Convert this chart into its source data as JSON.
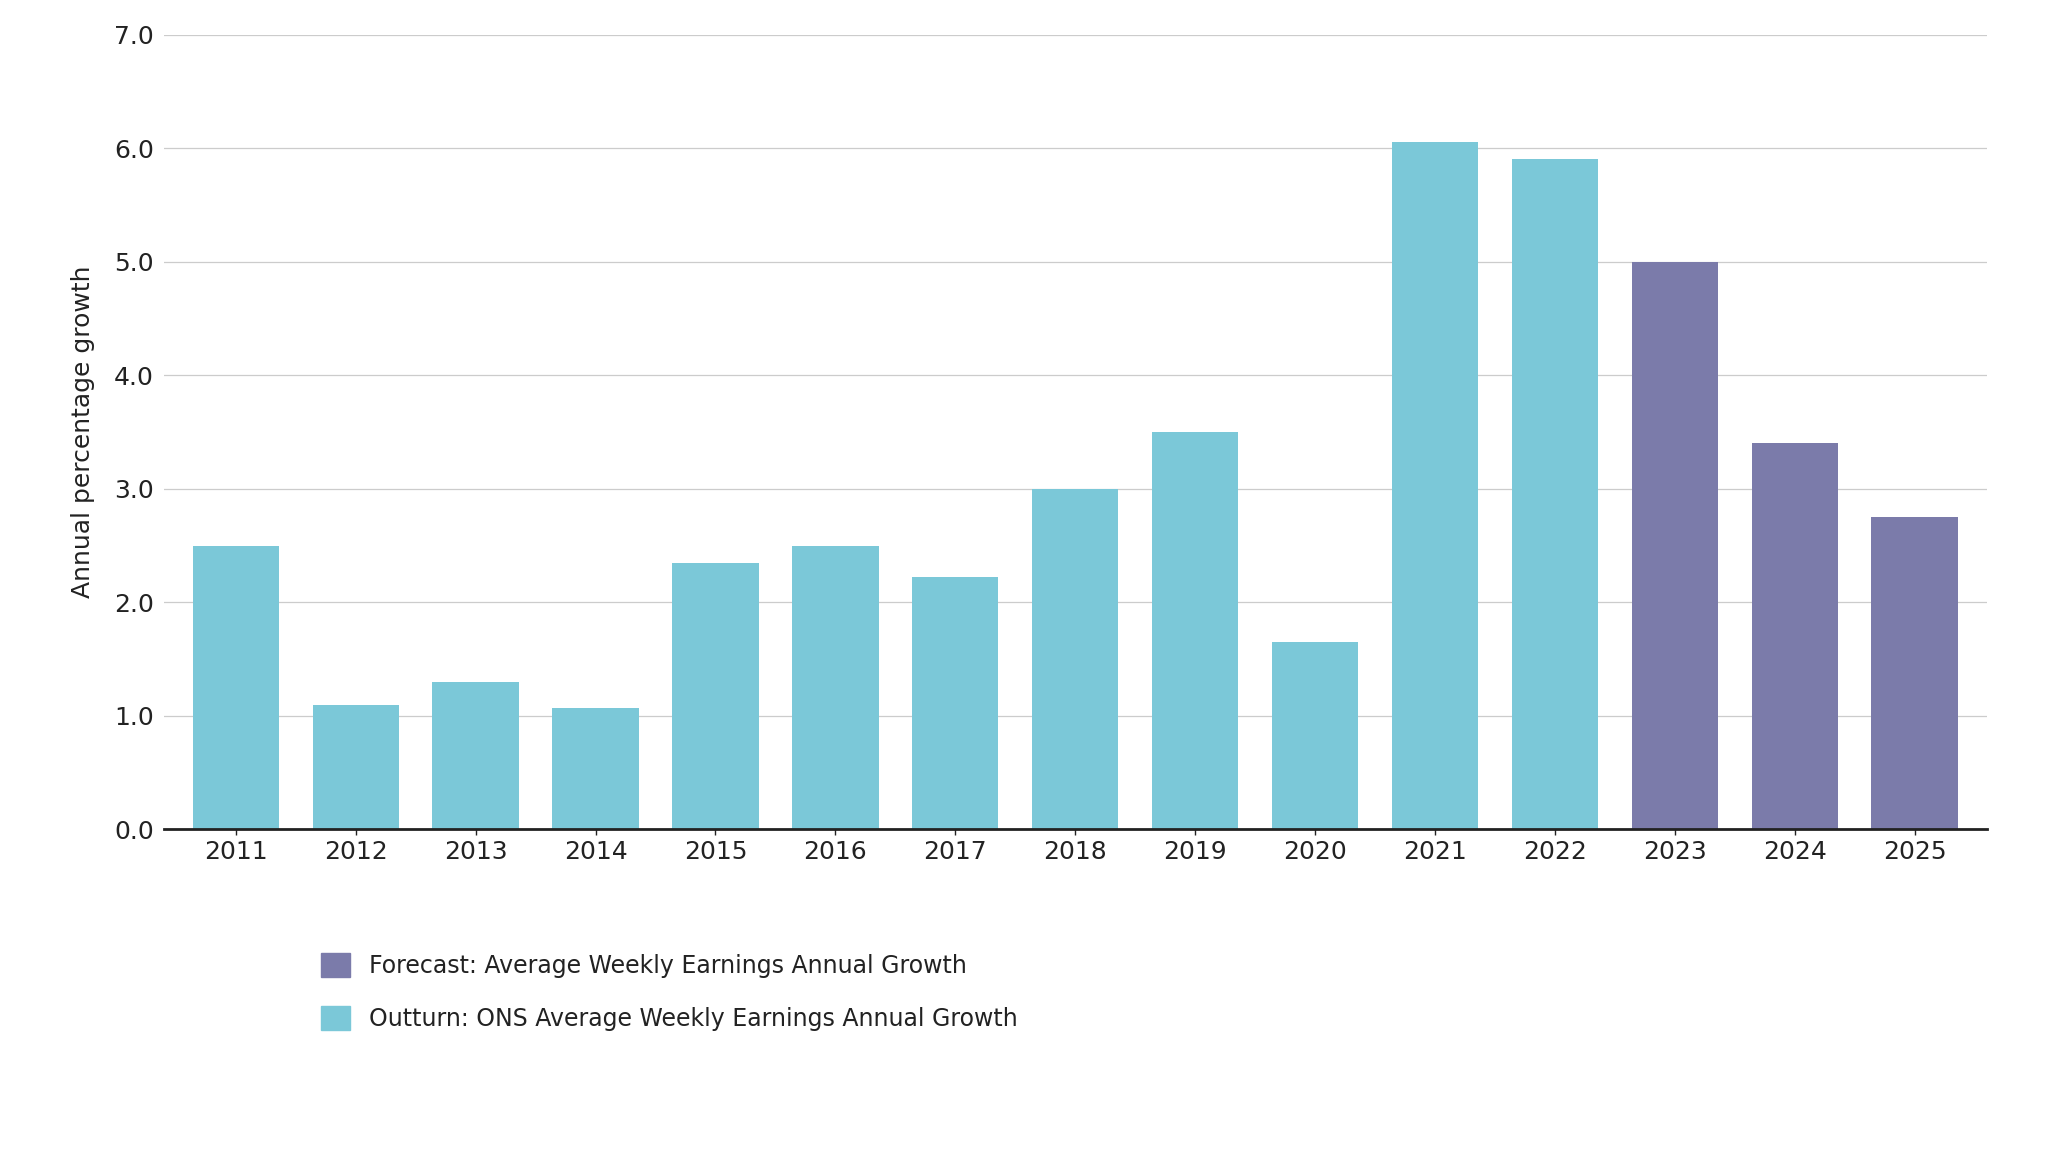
{
  "years": [
    2011,
    2012,
    2013,
    2014,
    2015,
    2016,
    2017,
    2018,
    2019,
    2020,
    2021,
    2022,
    2023,
    2024,
    2025
  ],
  "outturn_values": [
    2.5,
    1.1,
    1.3,
    1.07,
    2.35,
    2.5,
    2.22,
    3.0,
    3.5,
    1.65,
    6.05,
    5.9,
    null,
    null,
    null
  ],
  "forecast_values": [
    null,
    null,
    null,
    null,
    null,
    null,
    null,
    null,
    null,
    null,
    null,
    null,
    5.0,
    3.4,
    2.75
  ],
  "outturn_color": "#7BC8D8",
  "forecast_color": "#7B7BAA",
  "ylabel": "Annual percentage growth",
  "ylim": [
    0,
    7.0
  ],
  "yticks": [
    0.0,
    1.0,
    2.0,
    3.0,
    4.0,
    5.0,
    6.0,
    7.0
  ],
  "ytick_labels": [
    "0.0",
    "1.0",
    "2.0",
    "3.0",
    "4.0",
    "5.0",
    "6.0",
    "7.0"
  ],
  "legend_forecast": "Forecast: Average Weekly Earnings Annual Growth",
  "legend_outturn": "Outturn: ONS Average Weekly Earnings Annual Growth",
  "background_color": "#FFFFFF",
  "grid_color": "#CCCCCC",
  "bar_width": 0.72,
  "label_fontsize": 18,
  "tick_fontsize": 18,
  "legend_fontsize": 17
}
